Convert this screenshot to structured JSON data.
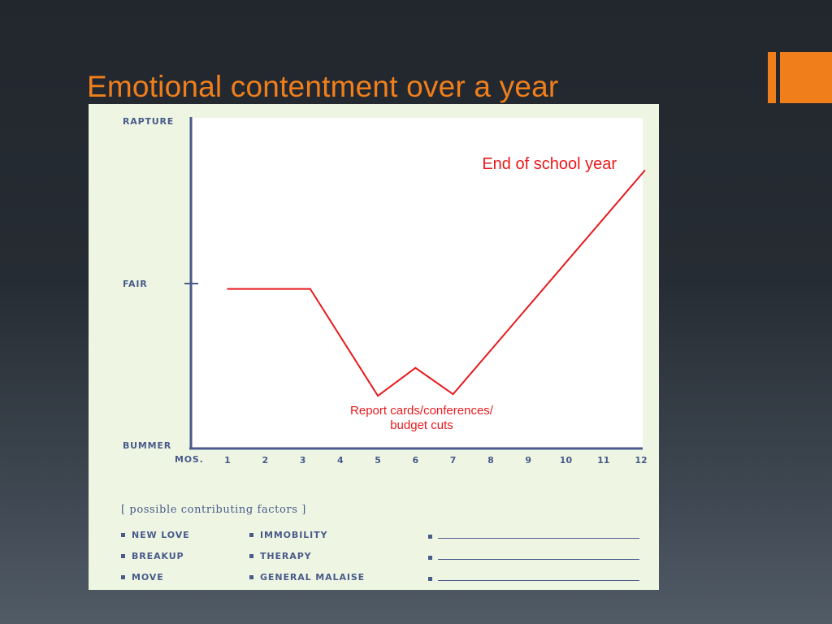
{
  "slide": {
    "title": "Emotional contentment over a year",
    "accent_color": "#f07f1b",
    "background_color": "#22272e"
  },
  "chart_data": {
    "type": "line",
    "title": "",
    "xlabel": "MOS.",
    "ylabel": "",
    "x": [
      1,
      2,
      3,
      4,
      5,
      6,
      7,
      8,
      9,
      10,
      11,
      12
    ],
    "x_tick_labels": [
      "1",
      "2",
      "3",
      "4",
      "5",
      "6",
      "7",
      "8",
      "9",
      "10",
      "11",
      "12"
    ],
    "y_tick_labels": [
      "RAPTURE",
      "FAIR",
      "BUMMER"
    ],
    "ylim": [
      0,
      100
    ],
    "y_tick_values": [
      100,
      50,
      0
    ],
    "series": [
      {
        "color": "#e8191c",
        "points": [
          {
            "x": 1,
            "y": 48.5
          },
          {
            "x": 3.2,
            "y": 48.5
          },
          {
            "x": 5,
            "y": 16
          },
          {
            "x": 6,
            "y": 24.5
          },
          {
            "x": 7,
            "y": 16.5
          },
          {
            "x": 12.1,
            "y": 84.5
          }
        ]
      }
    ],
    "annotations": [
      {
        "text": "End of school year",
        "color": "#e8191c"
      },
      {
        "text": "Report cards/conferences/\nbudget cuts",
        "color": "#e8191c"
      }
    ],
    "grid": false,
    "legend": "none"
  },
  "factors": {
    "header": "[ possible contributing factors ]",
    "column1": [
      "NEW LOVE",
      "BREAKUP",
      "MOVE"
    ],
    "column2": [
      "IMMOBILITY",
      "THERAPY",
      "GENERAL MALAISE"
    ]
  }
}
